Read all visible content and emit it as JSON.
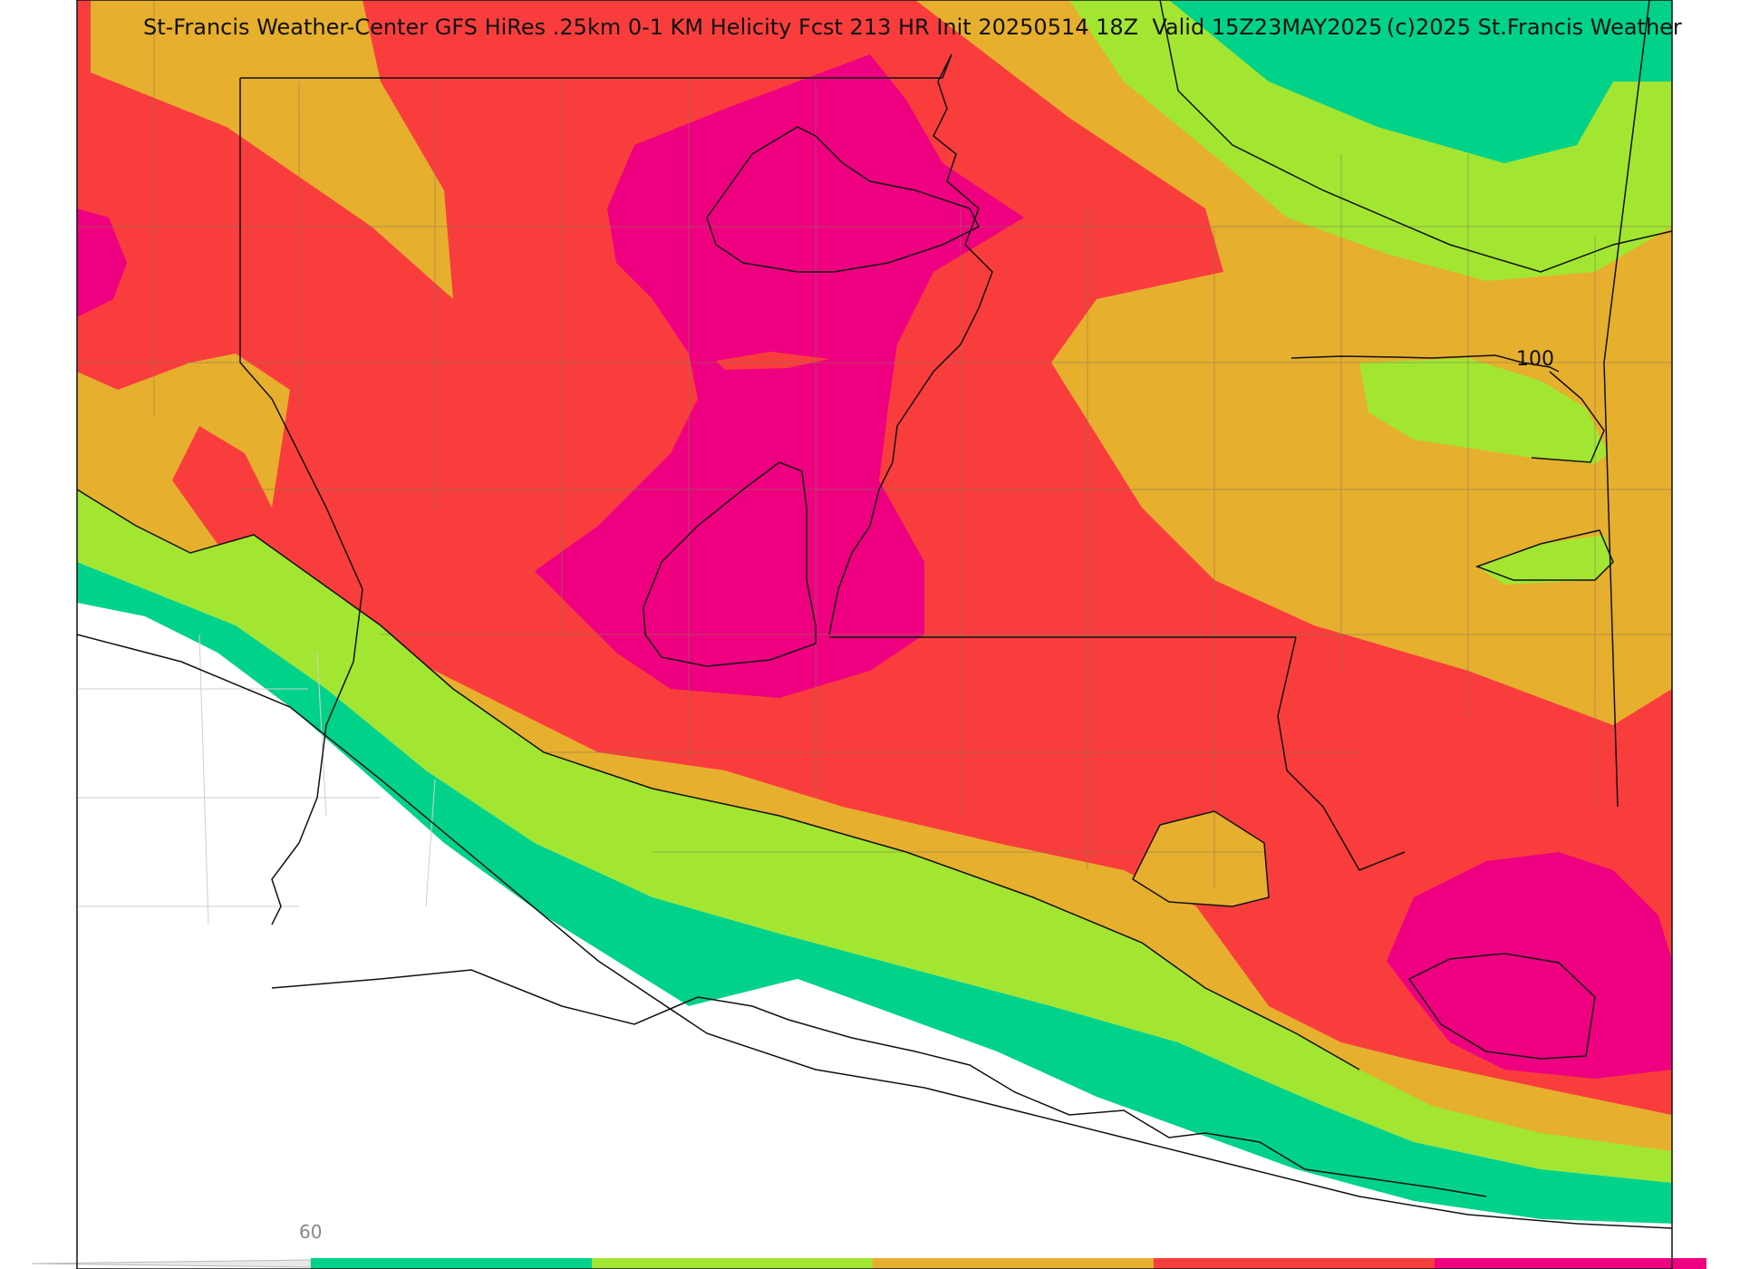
{
  "header": {
    "title": "St-Francis Weather-Center GFS HiRes .25km 0-1 KM Helicity Fcst 213 HR Init 20250514 18Z  Valid 15Z23MAY2025",
    "copyright": "(c)2025 St.Francis Weather"
  },
  "contour_labels": {
    "label_100": "100"
  },
  "colorbar": {
    "tick_label": "60",
    "colors": [
      "#00d28a",
      "#a2e632",
      "#e6af2e",
      "#f93d3d",
      "#ee0080"
    ]
  },
  "palette": {
    "band_teal": "#00d28a",
    "band_green": "#a2e632",
    "band_orange": "#e6af2e",
    "band_red": "#f93d3d",
    "band_magenta": "#ee0080",
    "boundary": "#111111",
    "county": "#8a7a55"
  },
  "icons": [
    "map-canvas",
    "state-boundaries",
    "coastline",
    "helicity-contours"
  ]
}
